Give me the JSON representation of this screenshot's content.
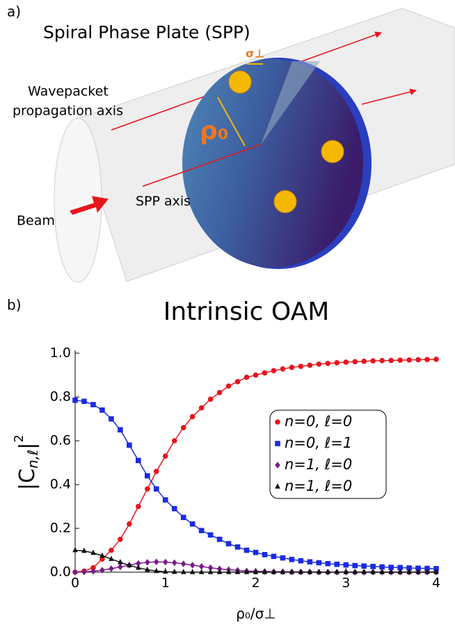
{
  "panel_a": {
    "label": "a)",
    "title": "Spiral Phase Plate (SPP)",
    "wavepacket_line1": "Wavepacket",
    "wavepacket_line2": "propagation axis",
    "rho": "ρ₀",
    "sigma": "σ⊥",
    "spp_axis": "SPP axis",
    "beam": "Beam"
  },
  "panel_b_label": "b)",
  "chart_data": {
    "type": "line",
    "title": "Intrinsic OAM",
    "x_label": "ρ₀/σ⊥",
    "y_label": {
      "open": "|C",
      "sub": "n,ℓ",
      "close": "|",
      "sup": "2"
    },
    "x": [
      0,
      0.1,
      0.2,
      0.3,
      0.4,
      0.5,
      0.6,
      0.7,
      0.8,
      0.9,
      1,
      1.1,
      1.2,
      1.3,
      1.4,
      1.5,
      1.6,
      1.7,
      1.8,
      1.9,
      2,
      2.1,
      2.2,
      2.3,
      2.4,
      2.5,
      2.6,
      2.7,
      2.8,
      2.9,
      3,
      3.1,
      3.2,
      3.3,
      3.4,
      3.5,
      3.6,
      3.7,
      3.8,
      3.9,
      4
    ],
    "series": [
      {
        "name": "n=0, ℓ=0",
        "color": "#e8141c",
        "marker": "circle",
        "values": [
          0,
          0.005,
          0.02,
          0.06,
          0.1,
          0.15,
          0.22,
          0.3,
          0.38,
          0.46,
          0.53,
          0.6,
          0.66,
          0.71,
          0.75,
          0.79,
          0.82,
          0.85,
          0.87,
          0.89,
          0.9,
          0.91,
          0.92,
          0.928,
          0.935,
          0.94,
          0.945,
          0.95,
          0.953,
          0.956,
          0.959,
          0.961,
          0.963,
          0.965,
          0.966,
          0.967,
          0.968,
          0.969,
          0.97,
          0.971,
          0.972
        ]
      },
      {
        "name": "n=0, ℓ=1",
        "color": "#1a2be0",
        "marker": "square",
        "values": [
          0.785,
          0.78,
          0.765,
          0.74,
          0.7,
          0.65,
          0.58,
          0.51,
          0.44,
          0.38,
          0.33,
          0.29,
          0.25,
          0.22,
          0.19,
          0.17,
          0.15,
          0.13,
          0.115,
          0.1,
          0.09,
          0.08,
          0.072,
          0.065,
          0.058,
          0.052,
          0.047,
          0.043,
          0.039,
          0.036,
          0.033,
          0.03,
          0.028,
          0.026,
          0.024,
          0.022,
          0.021,
          0.019,
          0.018,
          0.017,
          0.016
        ]
      },
      {
        "name": "n=1, ℓ=0",
        "color": "#7a1a8a",
        "marker": "diamond",
        "values": [
          0,
          0.001,
          0.004,
          0.009,
          0.016,
          0.024,
          0.032,
          0.04,
          0.045,
          0.047,
          0.046,
          0.043,
          0.038,
          0.032,
          0.026,
          0.02,
          0.015,
          0.011,
          0.008,
          0.005,
          0.004,
          0.003,
          0.002,
          0.002,
          0.001,
          0.001,
          0.001,
          0,
          0,
          0,
          0,
          0,
          0,
          0,
          0,
          0,
          0,
          0,
          0,
          0,
          0
        ]
      },
      {
        "name": "n=1, ℓ=0",
        "color": "#111111",
        "marker": "triangle",
        "values": [
          0.1,
          0.097,
          0.088,
          0.075,
          0.06,
          0.045,
          0.031,
          0.02,
          0.011,
          0.005,
          0.002,
          0.001,
          0,
          0,
          0,
          0,
          0,
          0,
          0,
          0,
          0,
          0,
          0,
          0,
          0,
          0,
          0,
          0,
          0,
          0,
          0,
          0,
          0,
          0,
          0,
          0,
          0,
          0,
          0,
          0,
          0
        ]
      }
    ],
    "xlim": [
      0,
      4
    ],
    "ylim": [
      0,
      1
    ],
    "xticks": [
      0,
      1,
      2,
      3,
      4
    ],
    "yticks": [
      {
        "value": 0,
        "label": "0.0"
      },
      {
        "value": 0.2,
        "label": "0.2"
      },
      {
        "value": 0.4,
        "label": "0.4"
      },
      {
        "value": 0.6,
        "label": "0.6"
      },
      {
        "value": 0.8,
        "label": "0.8"
      },
      {
        "value": 1,
        "label": "1.0"
      }
    ],
    "legend": "right"
  }
}
